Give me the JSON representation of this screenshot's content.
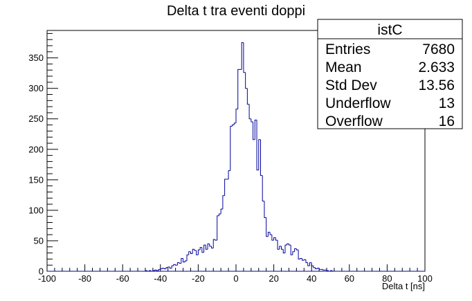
{
  "chart_data": {
    "type": "histogram",
    "title": "Delta t tra eventi doppi",
    "xlabel": "Delta t [ns]",
    "ylabel": "",
    "xlim": [
      -100,
      100
    ],
    "ylim": [
      0,
      395
    ],
    "x_ticks": [
      -100,
      -80,
      -60,
      -40,
      -20,
      0,
      20,
      40,
      60,
      80,
      100
    ],
    "y_ticks": [
      0,
      50,
      100,
      150,
      200,
      250,
      300,
      350
    ],
    "grid": false,
    "bin_width": 1,
    "bins": [
      [
        -48,
        1
      ],
      [
        -47,
        0
      ],
      [
        -46,
        1
      ],
      [
        -45,
        0
      ],
      [
        -44,
        1
      ],
      [
        -43,
        2
      ],
      [
        -42,
        1
      ],
      [
        -41,
        3
      ],
      [
        -40,
        4
      ],
      [
        -39,
        5
      ],
      [
        -38,
        4
      ],
      [
        -37,
        6
      ],
      [
        -36,
        7
      ],
      [
        -35,
        5
      ],
      [
        -34,
        9
      ],
      [
        -33,
        11
      ],
      [
        -32,
        10
      ],
      [
        -31,
        14
      ],
      [
        -30,
        13
      ],
      [
        -29,
        21
      ],
      [
        -28,
        15
      ],
      [
        -27,
        17
      ],
      [
        -26,
        27
      ],
      [
        -25,
        32
      ],
      [
        -24,
        29
      ],
      [
        -23,
        36
      ],
      [
        -22,
        34
      ],
      [
        -21,
        27
      ],
      [
        -20,
        35
      ],
      [
        -19,
        39
      ],
      [
        -18,
        31
      ],
      [
        -17,
        43
      ],
      [
        -16,
        36
      ],
      [
        -15,
        45
      ],
      [
        -14,
        41
      ],
      [
        -13,
        38
      ],
      [
        -12,
        52
      ],
      [
        -11,
        51
      ],
      [
        -10,
        91
      ],
      [
        -9,
        94
      ],
      [
        -8,
        102
      ],
      [
        -7,
        124
      ],
      [
        -6,
        151
      ],
      [
        -5,
        151
      ],
      [
        -4,
        165
      ],
      [
        -3,
        238
      ],
      [
        -2,
        240
      ],
      [
        -1,
        243
      ],
      [
        0,
        266
      ],
      [
        1,
        331
      ],
      [
        2,
        331
      ],
      [
        3,
        375
      ],
      [
        4,
        326
      ],
      [
        5,
        300
      ],
      [
        6,
        274
      ],
      [
        7,
        250
      ],
      [
        8,
        245
      ],
      [
        9,
        216
      ],
      [
        10,
        248
      ],
      [
        11,
        166
      ],
      [
        12,
        216
      ],
      [
        13,
        157
      ],
      [
        14,
        115
      ],
      [
        15,
        88
      ],
      [
        16,
        57
      ],
      [
        17,
        64
      ],
      [
        18,
        60
      ],
      [
        19,
        51
      ],
      [
        20,
        55
      ],
      [
        21,
        51
      ],
      [
        22,
        36
      ],
      [
        23,
        41
      ],
      [
        24,
        36
      ],
      [
        25,
        30
      ],
      [
        26,
        43
      ],
      [
        27,
        45
      ],
      [
        28,
        43
      ],
      [
        29,
        27
      ],
      [
        30,
        32
      ],
      [
        31,
        37
      ],
      [
        32,
        35
      ],
      [
        33,
        20
      ],
      [
        34,
        21
      ],
      [
        35,
        18
      ],
      [
        36,
        19
      ],
      [
        37,
        14
      ],
      [
        38,
        9
      ],
      [
        39,
        14
      ],
      [
        40,
        9
      ],
      [
        41,
        6
      ],
      [
        42,
        4
      ],
      [
        43,
        5
      ],
      [
        44,
        3
      ],
      [
        45,
        3
      ],
      [
        46,
        2
      ],
      [
        47,
        2
      ],
      [
        48,
        1
      ],
      [
        49,
        0
      ],
      [
        50,
        1
      ]
    ],
    "line_color": "#000099"
  },
  "stats": {
    "name": "istC",
    "rows": [
      {
        "label": "Entries",
        "value": "7680"
      },
      {
        "label": "Mean",
        "value": "2.633"
      },
      {
        "label": "Std Dev",
        "value": "13.56"
      },
      {
        "label": "Underflow",
        "value": "13"
      },
      {
        "label": "Overflow",
        "value": "16"
      }
    ]
  }
}
